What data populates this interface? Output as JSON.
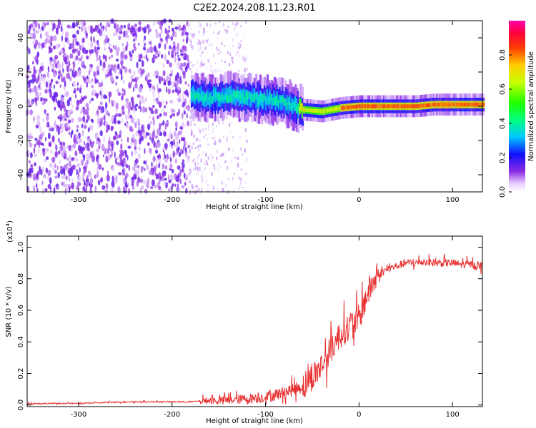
{
  "title": "C2E2.2024.208.11.23.R01",
  "colors": {
    "snr_line": "#e83232",
    "frame": "#000000",
    "background": "#ffffff"
  },
  "chart_data": [
    {
      "type": "heatmap",
      "title": "C2E2.2024.208.11.23.R01",
      "xlabel": "Height of straight line (km)",
      "ylabel": "Frequency (Hz)",
      "xlim": [
        -355,
        132
      ],
      "ylim": [
        -50,
        50
      ],
      "xticks": [
        -300,
        -200,
        -100,
        0,
        100
      ],
      "xticklabels": [
        "-300",
        "-200",
        "-100",
        "0",
        "100"
      ],
      "yticks": [
        -40,
        -20,
        0,
        20,
        40
      ],
      "yticklabels": [
        "-40",
        "-20",
        "0",
        "20",
        "40"
      ],
      "colorbar": {
        "label": "Normalized spectral amplitude",
        "range": [
          0,
          1
        ],
        "ticks": [
          0.0,
          0.2,
          0.4,
          0.6,
          0.8
        ],
        "ticklabels": [
          "0.0",
          "0.2",
          "0.4",
          "0.6",
          "0.8"
        ],
        "colormap": "rainbow (white-violet-blue-cyan-green-yellow-red-magenta)"
      },
      "regions": [
        {
          "x": [
            -355,
            -182
          ],
          "description": "broadband noise across all frequencies",
          "amplitude": 0.1
        },
        {
          "x": [
            -182,
            -120
          ],
          "description": "sparse noise columns",
          "amplitude": 0.05
        },
        {
          "x": [
            -182,
            -65
          ],
          "freq": 4,
          "amplitude": 0.35
        },
        {
          "x": [
            -65,
            -20
          ],
          "freq": -3,
          "amplitude": 0.6
        },
        {
          "x": [
            -20,
            132
          ],
          "freq": 0,
          "amplitude": 0.75
        }
      ],
      "peak_frequency_track": {
        "x": [
          -180,
          -160,
          -140,
          -120,
          -100,
          -80,
          -60,
          -40,
          -20,
          0,
          20,
          40,
          60,
          80,
          100,
          132
        ],
        "freq": [
          6,
          5,
          6,
          5,
          4,
          2,
          -2,
          -3,
          -1,
          0,
          0,
          0,
          0,
          1,
          1,
          1
        ]
      }
    },
    {
      "type": "line",
      "xlabel": "Height of straight line (km)",
      "ylabel": "SNR (10 * v/v)",
      "yscale_label": "(x10",
      "yscale_exp": "4",
      "yscale_close": ")",
      "xlim": [
        -355,
        132
      ],
      "ylim": [
        -0.01,
        1.07
      ],
      "xticks": [
        -300,
        -200,
        -100,
        0,
        100
      ],
      "xticklabels": [
        "-300",
        "-200",
        "-100",
        "0",
        "100"
      ],
      "yticks": [
        0.0,
        0.2,
        0.4,
        0.6,
        0.8,
        1.0
      ],
      "yticklabels": [
        "0.0",
        "0.2",
        "0.4",
        "0.6",
        "0.8",
        "1.0"
      ],
      "series": [
        {
          "x": [
            -355,
            -300,
            -250,
            -200,
            -180,
            -160,
            -140,
            -120,
            -100,
            -80,
            -60,
            -50,
            -40,
            -30,
            -20,
            -10,
            0,
            10,
            20,
            30,
            40,
            50,
            60,
            70,
            80,
            90,
            100,
            110,
            120,
            132
          ],
          "y": [
            0.01,
            0.01,
            0.02,
            0.02,
            0.02,
            0.03,
            0.03,
            0.04,
            0.05,
            0.08,
            0.12,
            0.18,
            0.25,
            0.35,
            0.45,
            0.5,
            0.55,
            0.72,
            0.82,
            0.86,
            0.88,
            0.9,
            0.9,
            0.91,
            0.9,
            0.9,
            0.9,
            0.89,
            0.89,
            0.88
          ]
        }
      ]
    }
  ]
}
